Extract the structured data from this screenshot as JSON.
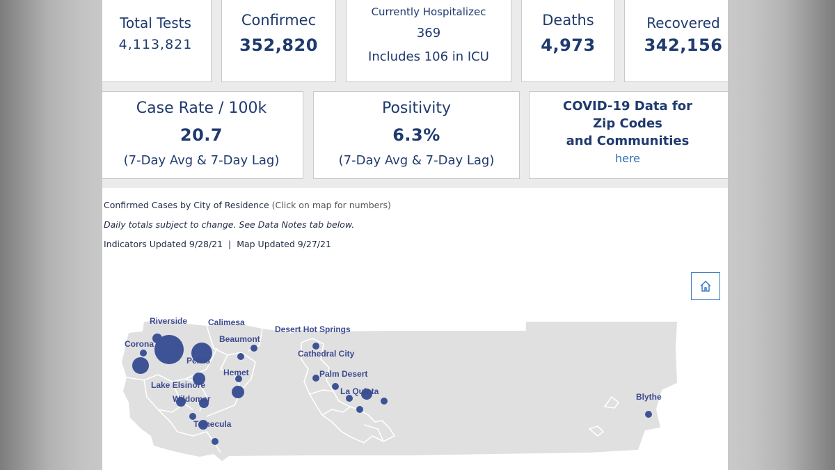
{
  "stats": {
    "total_tests": {
      "label": "Total Tests",
      "value": "4,113,821"
    },
    "confirmed": {
      "label": "Confirmec",
      "value": "352,820"
    },
    "hospitalized": {
      "label": "Currently Hospitalizec",
      "value": "369",
      "note": "Includes 106 in ICU"
    },
    "deaths": {
      "label": "Deaths",
      "value": "4,973"
    },
    "recovered": {
      "label": "Recovered",
      "value": "342,156"
    }
  },
  "indicators": {
    "case_rate": {
      "label": "Case Rate / 100k",
      "value": "20.7",
      "note": "(7-Day Avg & 7-Day Lag)"
    },
    "positivity": {
      "label": "Positivity",
      "value": "6.3%",
      "note": "(7-Day Avg & 7-Day Lag)"
    },
    "zip_link": {
      "line1": "COVID-19 Data for",
      "line2": "Zip Codes",
      "line3": "and Communities",
      "link": "here"
    }
  },
  "notes": {
    "map_title": "Confirmed Cases by City of Residence",
    "map_hint": "(Click on map for numbers)",
    "disclaimer": "Daily totals subject to change. See Data Notes tab below.",
    "updated": "Indicators Updated 9/28/21  |  Map Updated 9/27/21"
  },
  "map": {
    "home_icon": "home-icon",
    "cities": {
      "riverside": "Riverside",
      "calimesa": "Calimesa",
      "corona": "Corona",
      "beaumont": "Beaumont",
      "perris": "Perris",
      "hemet": "Hemet",
      "lake_elsinore": "Lake Elsinore",
      "wildomar": "Wildomar",
      "temecula": "Temecula",
      "desert_hot_springs": "Desert Hot Springs",
      "cathedral_city": "Cathedral City",
      "palm_desert": "Palm Desert",
      "la_quinta": "La Quinta",
      "blythe": "Blythe"
    },
    "colors": {
      "land": "#e0e0e0",
      "marker": "#3d5396",
      "label": "#3c4a8f"
    }
  }
}
